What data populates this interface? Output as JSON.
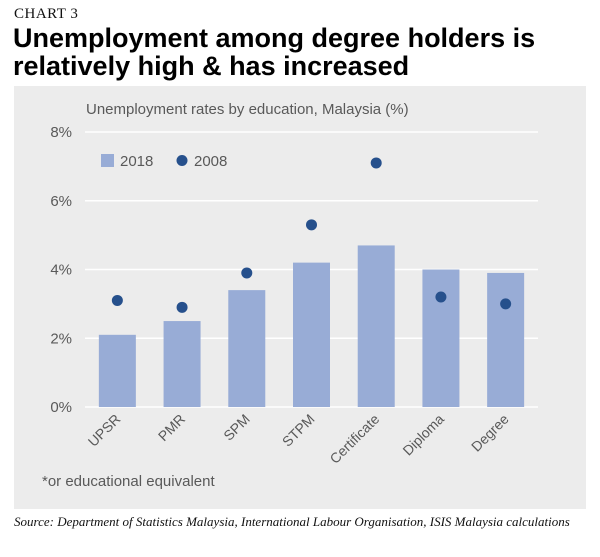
{
  "kicker": "CHART 3",
  "headline": "Unemployment among degree holders is relatively high & has increased",
  "footnote": "*or educational equivalent",
  "source": "Source: Department of Statistics Malaysia, International Labour Organisation, ISIS Malaysia calculations",
  "colors": {
    "bar_2018": "#98acd6",
    "dot_2008": "#26508c",
    "panel": "#ececec",
    "grid": "#ffffff"
  },
  "chart_data": {
    "type": "bar",
    "title": "Unemployment rates by education, Malaysia (%)",
    "categories": [
      "UPSR",
      "PMR",
      "SPM",
      "STPM",
      "Certificate",
      "Diploma",
      "Degree"
    ],
    "series": [
      {
        "name": "2018",
        "kind": "bar",
        "values": [
          2.1,
          2.5,
          3.4,
          4.2,
          4.7,
          4.0,
          3.9
        ]
      },
      {
        "name": "2008",
        "kind": "dot",
        "values": [
          3.1,
          2.9,
          3.9,
          5.3,
          7.1,
          3.2,
          3.0
        ]
      }
    ],
    "yticks": [
      "0%",
      "2%",
      "4%",
      "6%",
      "8%"
    ],
    "ylim": [
      0,
      8
    ],
    "grid": true,
    "legend": "top-left"
  }
}
